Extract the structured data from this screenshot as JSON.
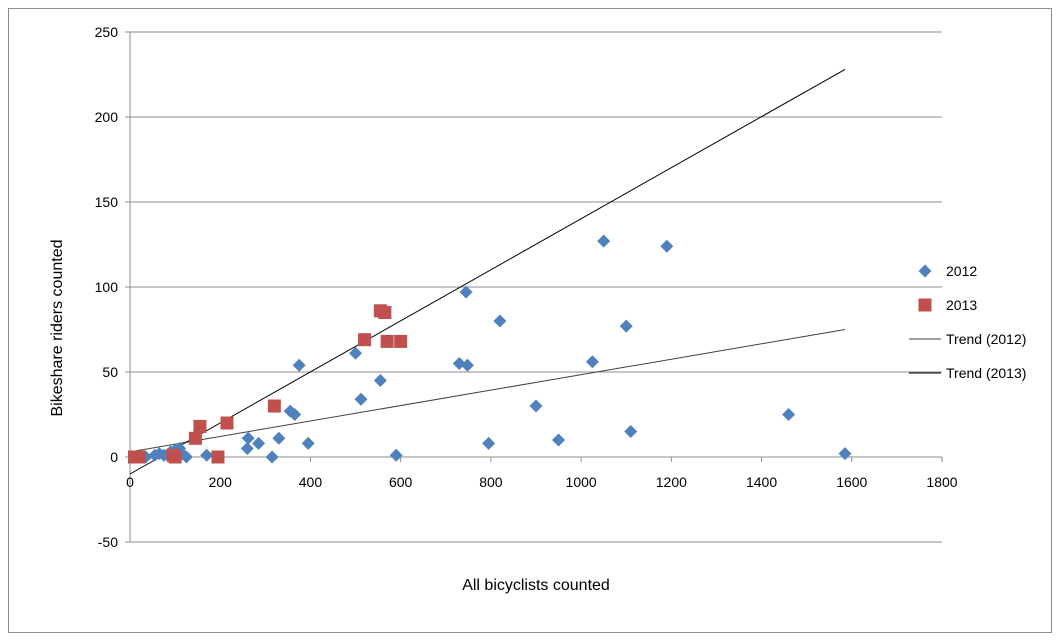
{
  "chart_data": {
    "type": "scatter",
    "title": "",
    "xlabel": "All bicyclists counted",
    "ylabel": "Bikeshare riders counted",
    "xlim": [
      0,
      1800
    ],
    "ylim": [
      -50,
      250
    ],
    "x_ticks": [
      0,
      200,
      400,
      600,
      800,
      1000,
      1200,
      1400,
      1600,
      1800
    ],
    "y_ticks": [
      -50,
      0,
      50,
      100,
      150,
      200,
      250
    ],
    "grid": "horizontal",
    "legend_position": "right",
    "series": [
      {
        "name": "2012",
        "marker": "diamond",
        "color": "#4f81bd",
        "points": [
          [
            10,
            0
          ],
          [
            35,
            0
          ],
          [
            55,
            1
          ],
          [
            65,
            2
          ],
          [
            75,
            1
          ],
          [
            90,
            3
          ],
          [
            100,
            4
          ],
          [
            110,
            5
          ],
          [
            115,
            2
          ],
          [
            125,
            0
          ],
          [
            170,
            1
          ],
          [
            260,
            5
          ],
          [
            262,
            11
          ],
          [
            285,
            8
          ],
          [
            315,
            0
          ],
          [
            330,
            11
          ],
          [
            355,
            27
          ],
          [
            365,
            25
          ],
          [
            375,
            54
          ],
          [
            395,
            8
          ],
          [
            500,
            61
          ],
          [
            512,
            34
          ],
          [
            555,
            45
          ],
          [
            590,
            1
          ],
          [
            730,
            55
          ],
          [
            745,
            97
          ],
          [
            748,
            54
          ],
          [
            795,
            8
          ],
          [
            820,
            80
          ],
          [
            900,
            30
          ],
          [
            950,
            10
          ],
          [
            1025,
            56
          ],
          [
            1050,
            127
          ],
          [
            1100,
            77
          ],
          [
            1110,
            15
          ],
          [
            1190,
            124
          ],
          [
            1460,
            25
          ],
          [
            1585,
            2
          ]
        ]
      },
      {
        "name": "2013",
        "marker": "square",
        "color": "#c0504d",
        "points": [
          [
            10,
            0
          ],
          [
            20,
            0
          ],
          [
            95,
            1
          ],
          [
            100,
            0
          ],
          [
            145,
            11
          ],
          [
            155,
            18
          ],
          [
            195,
            0
          ],
          [
            215,
            20
          ],
          [
            320,
            30
          ],
          [
            520,
            69
          ],
          [
            555,
            86
          ],
          [
            565,
            85
          ],
          [
            570,
            68
          ],
          [
            600,
            68
          ]
        ]
      }
    ],
    "trendlines": [
      {
        "name": "Trend (2012)",
        "color": "#404040",
        "x": [
          0,
          1585
        ],
        "y": [
          3,
          75
        ]
      },
      {
        "name": "Trend (2013)",
        "color": "#000000",
        "x": [
          0,
          1585
        ],
        "y": [
          -10,
          228
        ]
      }
    ]
  }
}
